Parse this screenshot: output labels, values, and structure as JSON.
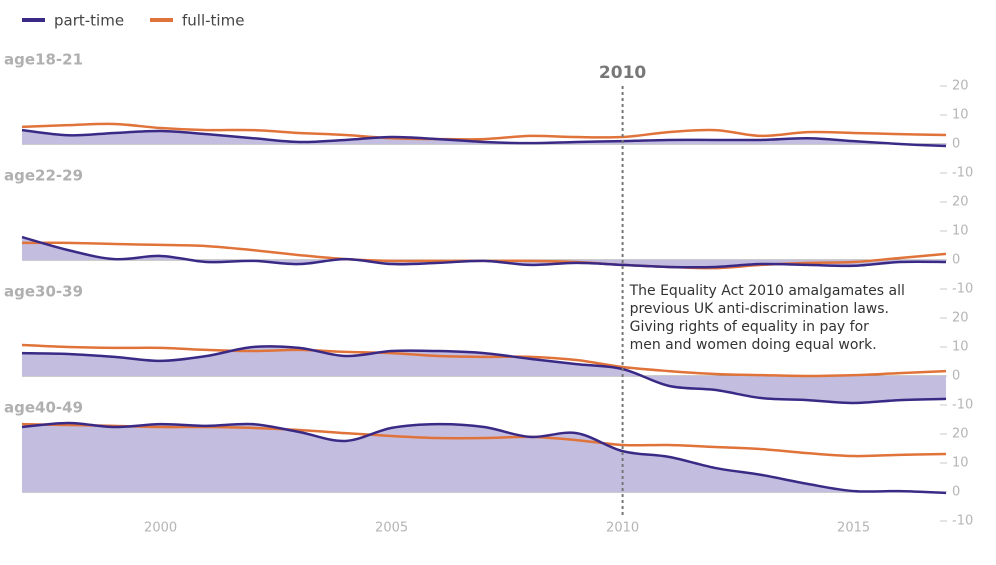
{
  "chart_data": [
    {
      "type": "line",
      "title": "age18-21",
      "x": [
        1997,
        1998,
        1999,
        2000,
        2001,
        2002,
        2003,
        2004,
        2005,
        2006,
        2007,
        2008,
        2009,
        2010,
        2011,
        2012,
        2013,
        2014,
        2015,
        2016,
        2017
      ],
      "xlim": [
        1997,
        2017
      ],
      "ylim": [
        -10,
        30
      ],
      "yticks": [
        -10,
        0,
        10,
        20
      ],
      "legend": "top-left",
      "series": [
        {
          "name": "part-time",
          "color": "#3a2a86",
          "fill": "#c3bee0",
          "values": [
            4.8,
            3,
            3.8,
            4.5,
            3.4,
            2,
            0.7,
            1.4,
            2.4,
            1.7,
            0.7,
            0.3,
            0.7,
            1,
            1.4,
            1.4,
            1.4,
            2,
            1,
            0,
            -0.7
          ]
        },
        {
          "name": "full-time",
          "color": "#e0733a",
          "values": [
            5.9,
            6.5,
            6.9,
            5.5,
            4.8,
            4.8,
            3.8,
            3.1,
            2,
            1.7,
            1.7,
            2.8,
            2.4,
            2.4,
            4.1,
            4.8,
            2.8,
            4.1,
            3.8,
            3.4,
            3.1
          ]
        }
      ]
    },
    {
      "type": "line",
      "title": "age22-29",
      "x": [
        1997,
        1998,
        1999,
        2000,
        2001,
        2002,
        2003,
        2004,
        2005,
        2006,
        2007,
        2008,
        2009,
        2010,
        2011,
        2012,
        2013,
        2014,
        2015,
        2016,
        2017
      ],
      "xlim": [
        1997,
        2017
      ],
      "ylim": [
        -10,
        30
      ],
      "yticks": [
        -10,
        0,
        10,
        20
      ],
      "series": [
        {
          "name": "part-time",
          "color": "#3a2a86",
          "fill": "#c3bee0",
          "values": [
            7.9,
            3.4,
            0.3,
            1.4,
            -0.7,
            -0.3,
            -1.4,
            0.3,
            -1.4,
            -1,
            -0.3,
            -1.7,
            -1,
            -1.7,
            -2.4,
            -2.4,
            -1.4,
            -1.7,
            -2,
            -0.7,
            -0.7
          ]
        },
        {
          "name": "full-time",
          "color": "#e0733a",
          "values": [
            5.9,
            5.9,
            5.5,
            5.2,
            4.8,
            3.4,
            1.7,
            0.3,
            -0.3,
            -0.3,
            -0.3,
            -0.3,
            -0.7,
            -1.7,
            -2.4,
            -2.8,
            -1.7,
            -1,
            -0.7,
            0.7,
            2.1
          ]
        }
      ]
    },
    {
      "type": "line",
      "title": "age30-39",
      "x": [
        1997,
        1998,
        1999,
        2000,
        2001,
        2002,
        2003,
        2004,
        2005,
        2006,
        2007,
        2008,
        2009,
        2010,
        2011,
        2012,
        2013,
        2014,
        2015,
        2016,
        2017
      ],
      "xlim": [
        1997,
        2017
      ],
      "ylim": [
        -10,
        30
      ],
      "yticks": [
        -10,
        0,
        10,
        20
      ],
      "series": [
        {
          "name": "part-time",
          "color": "#3a2a86",
          "fill": "#c3bee0",
          "values": [
            7.9,
            7.6,
            6.6,
            5.2,
            6.9,
            10,
            9.7,
            6.9,
            8.6,
            8.6,
            7.9,
            5.9,
            4.1,
            2.4,
            -3.4,
            -4.8,
            -7.6,
            -8.3,
            -9.3,
            -8.3,
            -7.9
          ]
        },
        {
          "name": "full-time",
          "color": "#e0733a",
          "values": [
            10.7,
            10,
            9.7,
            9.7,
            9,
            8.6,
            9,
            8.3,
            7.9,
            6.9,
            6.6,
            6.6,
            5.5,
            3.1,
            1.7,
            0.7,
            0.3,
            0,
            0.3,
            1,
            1.7
          ]
        }
      ]
    },
    {
      "type": "line",
      "title": "age40-49",
      "x": [
        1997,
        1998,
        1999,
        2000,
        2001,
        2002,
        2003,
        2004,
        2005,
        2006,
        2007,
        2008,
        2009,
        2010,
        2011,
        2012,
        2013,
        2014,
        2015,
        2016,
        2017
      ],
      "xlim": [
        1997,
        2017
      ],
      "ylim": [
        -10,
        30
      ],
      "yticks": [
        -10,
        0,
        10,
        20
      ],
      "xticks": [
        2000,
        2005,
        2010,
        2015
      ],
      "series": [
        {
          "name": "part-time",
          "color": "#3a2a86",
          "fill": "#c3bee0",
          "values": [
            22.4,
            23.8,
            22.4,
            23.4,
            22.8,
            23.4,
            20.7,
            17.6,
            22.1,
            23.4,
            22.4,
            19,
            20.3,
            14.1,
            12.1,
            8.3,
            5.9,
            2.8,
            0.3,
            0.3,
            -0.3
          ]
        },
        {
          "name": "full-time",
          "color": "#e0733a",
          "values": [
            23.4,
            23.1,
            22.8,
            22.4,
            22.4,
            22.1,
            21.4,
            20.3,
            19.3,
            18.6,
            18.6,
            19,
            17.9,
            16.2,
            16.2,
            15.5,
            14.8,
            13.4,
            12.4,
            12.8,
            13.1
          ]
        }
      ]
    }
  ],
  "annotation": {
    "x": 2010,
    "text": [
      "The Equality Act 2010 amalgamates all",
      "previous UK anti-discrimination laws.",
      "Giving rights of equality in pay for",
      "men and women doing equal work."
    ]
  }
}
